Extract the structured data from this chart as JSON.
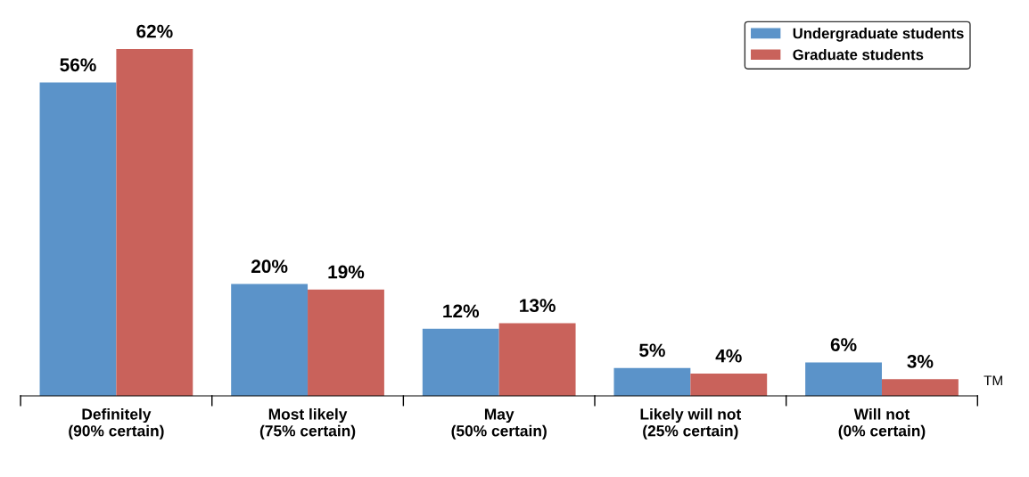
{
  "chart_data": {
    "type": "bar",
    "categories": [
      "Definitely\n(90% certain)",
      "Most likely\n(75% certain)",
      "May\n(50% certain)",
      "Likely will not\n(25% certain)",
      "Will not\n(0% certain)"
    ],
    "series": [
      {
        "name": "Undergraduate students",
        "color": "#5b93c9",
        "values": [
          56,
          20,
          12,
          5,
          6
        ],
        "value_labels": [
          "56%",
          "20%",
          "12%",
          "5%",
          "6%"
        ]
      },
      {
        "name": "Graduate students",
        "color": "#c9625b",
        "values": [
          62,
          19,
          13,
          4,
          3
        ],
        "value_labels": [
          "62%",
          "19%",
          "13%",
          "4%",
          "3%"
        ]
      }
    ],
    "legend": "top right",
    "grid": false,
    "annotations": [
      "TM"
    ]
  }
}
